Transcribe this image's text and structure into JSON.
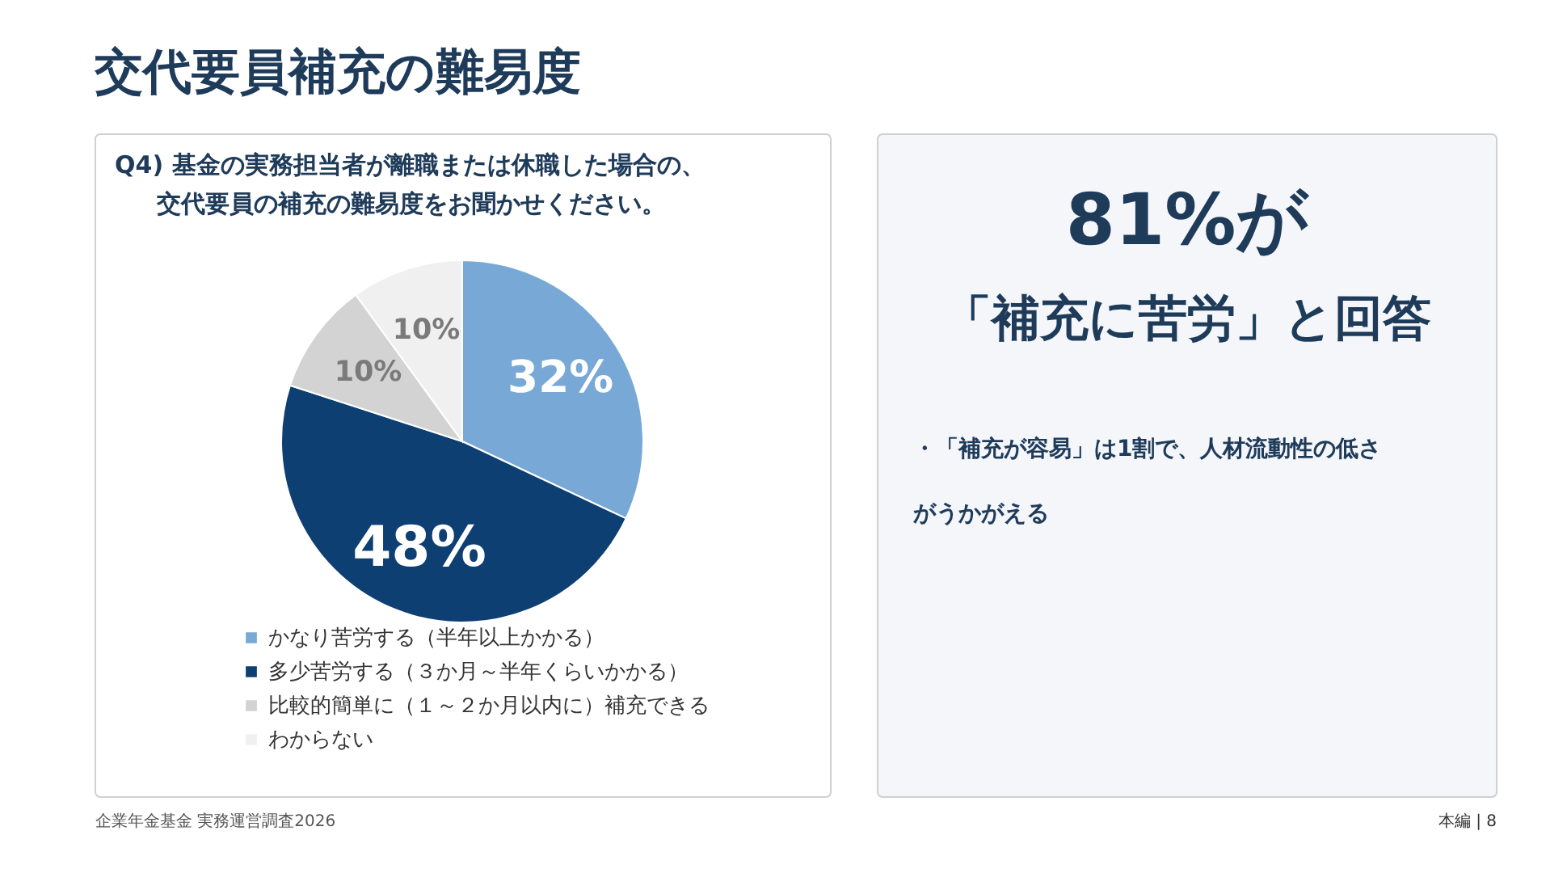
{
  "chart_data": [
    {
      "type": "pie",
      "title": "交代要員補充の難易度",
      "subtitle": "Q4) 基金の実務担当者が離職または休職した場合の、交代要員の補充の難易度をお聞かせください。",
      "categories": [
        "かなり苦労する（半年以上かかる）",
        "多少苦労する（３か月～半年くらいかかる）",
        "比較的簡単に（１～２か月以内に）補充できる",
        "わからない"
      ],
      "values": [
        32,
        48,
        10,
        10
      ],
      "colors": [
        "#78a9d6",
        "#0d3f72",
        "#d3d3d3",
        "#f0f0f0"
      ],
      "value_labels": [
        "32%",
        "48%",
        "10%",
        "10%"
      ],
      "legend": "bottom",
      "annotations": [
        "企業年金基金 実務運営調査2026"
      ]
    },
    {
      "type": "other",
      "title": "81%が",
      "subtitle": "「補充に苦労」と回答",
      "annotations": [
        "・「補充が容易」は1割で、人材流動性の低さがうかがえる",
        "本編 | 8"
      ]
    }
  ]
}
